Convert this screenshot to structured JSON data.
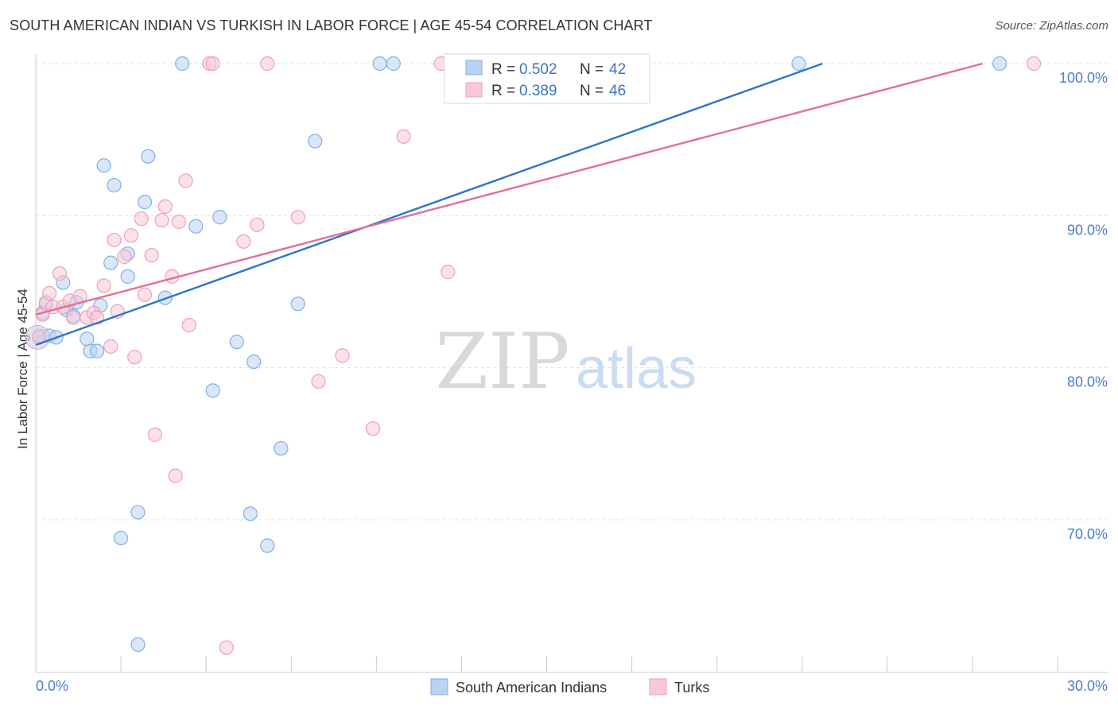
{
  "title": "SOUTH AMERICAN INDIAN VS TURKISH IN LABOR FORCE | AGE 45-54 CORRELATION CHART",
  "source": "Source: ZipAtlas.com",
  "watermark": {
    "zip": "ZIP",
    "atlas": "atlas"
  },
  "colors": {
    "blue": "#7fb0e8",
    "blue_fill": "#b9d4f3",
    "blue_line": "#2f73cc",
    "pink": "#f0a0b8",
    "pink_fill": "#f8c8d7",
    "pink_line": "#e26f97",
    "tick_text": "#4a7dc8",
    "grid": "#dde3ea"
  },
  "legend_box": {
    "rows": [
      {
        "r_label": "R =",
        "r_value": "0.502",
        "n_label": "N =",
        "n_value": "42"
      },
      {
        "r_label": "R =",
        "r_value": "0.389",
        "n_label": "N =",
        "n_value": "46"
      }
    ]
  },
  "chart_data": {
    "type": "scatter",
    "title": "SOUTH AMERICAN INDIAN VS TURKISH IN LABOR FORCE | AGE 45-54 CORRELATION CHART",
    "xlabel": "",
    "ylabel": "In Labor Force | Age 45-54",
    "xlim": [
      0,
      30
    ],
    "ylim": [
      60.5,
      101
    ],
    "x_tick_labels": [
      "0.0%",
      "30.0%"
    ],
    "y_ticks": [
      70,
      80,
      90,
      100
    ],
    "y_tick_labels": [
      "70.0%",
      "80.0%",
      "90.0%",
      "100.0%"
    ],
    "grid": true,
    "legend_position": "bottom",
    "series": [
      {
        "name": "South American Indians",
        "color": "#7fb0e8",
        "r": 0.502,
        "n": 42,
        "trend": {
          "x": [
            0.0,
            23.1
          ],
          "y": [
            81.5,
            100.0
          ]
        },
        "points": [
          [
            0.1,
            82.0
          ],
          [
            0.2,
            83.6
          ],
          [
            0.3,
            84.2
          ],
          [
            0.4,
            82.1
          ],
          [
            0.6,
            82.0
          ],
          [
            0.8,
            85.6
          ],
          [
            0.9,
            83.8
          ],
          [
            1.1,
            83.4
          ],
          [
            1.2,
            84.3
          ],
          [
            1.5,
            81.9
          ],
          [
            1.6,
            81.1
          ],
          [
            1.8,
            81.1
          ],
          [
            1.9,
            84.1
          ],
          [
            2.0,
            93.3
          ],
          [
            2.2,
            86.9
          ],
          [
            2.3,
            92.0
          ],
          [
            2.5,
            68.8
          ],
          [
            2.7,
            86.0
          ],
          [
            2.7,
            87.5
          ],
          [
            3.0,
            61.8
          ],
          [
            3.0,
            70.5
          ],
          [
            3.2,
            90.9
          ],
          [
            3.3,
            93.9
          ],
          [
            3.8,
            84.6
          ],
          [
            4.3,
            100.0
          ],
          [
            4.7,
            89.3
          ],
          [
            5.2,
            78.5
          ],
          [
            5.4,
            89.9
          ],
          [
            5.9,
            81.7
          ],
          [
            6.3,
            70.4
          ],
          [
            6.4,
            80.4
          ],
          [
            6.8,
            68.3
          ],
          [
            7.2,
            74.7
          ],
          [
            7.7,
            84.2
          ],
          [
            8.2,
            94.9
          ],
          [
            10.1,
            100.0
          ],
          [
            10.5,
            100.0
          ],
          [
            12.3,
            100.0
          ],
          [
            13.3,
            100.0
          ],
          [
            16.8,
            100.0
          ],
          [
            22.4,
            100.0
          ],
          [
            28.3,
            100.0
          ]
        ]
      },
      {
        "name": "Turks",
        "color": "#f0a0b8",
        "r": 0.389,
        "n": 46,
        "trend": {
          "x": [
            0.0,
            27.8
          ],
          "y": [
            83.5,
            100.0
          ]
        },
        "points": [
          [
            0.1,
            82.1
          ],
          [
            0.2,
            83.5
          ],
          [
            0.3,
            84.3
          ],
          [
            0.4,
            84.9
          ],
          [
            0.5,
            84.0
          ],
          [
            0.7,
            86.2
          ],
          [
            0.8,
            84.0
          ],
          [
            1.0,
            84.4
          ],
          [
            1.1,
            83.3
          ],
          [
            1.3,
            84.7
          ],
          [
            1.5,
            83.3
          ],
          [
            1.7,
            83.6
          ],
          [
            1.8,
            83.3
          ],
          [
            2.0,
            85.4
          ],
          [
            2.2,
            81.4
          ],
          [
            2.3,
            88.4
          ],
          [
            2.4,
            83.7
          ],
          [
            2.6,
            87.3
          ],
          [
            2.8,
            88.7
          ],
          [
            2.9,
            80.7
          ],
          [
            3.1,
            89.8
          ],
          [
            3.2,
            84.8
          ],
          [
            3.4,
            87.4
          ],
          [
            3.5,
            75.6
          ],
          [
            3.7,
            89.7
          ],
          [
            3.8,
            90.6
          ],
          [
            4.0,
            86.0
          ],
          [
            4.1,
            72.9
          ],
          [
            4.2,
            89.6
          ],
          [
            4.4,
            92.3
          ],
          [
            4.5,
            82.8
          ],
          [
            5.1,
            100.0
          ],
          [
            5.2,
            100.0
          ],
          [
            5.6,
            61.6
          ],
          [
            6.1,
            88.3
          ],
          [
            6.5,
            89.4
          ],
          [
            6.8,
            100.0
          ],
          [
            7.7,
            89.9
          ],
          [
            8.3,
            79.1
          ],
          [
            9.0,
            80.8
          ],
          [
            9.9,
            76.0
          ],
          [
            10.8,
            95.2
          ],
          [
            11.9,
            100.0
          ],
          [
            12.1,
            86.3
          ],
          [
            12.7,
            100.0
          ],
          [
            29.3,
            100.0
          ]
        ]
      }
    ]
  }
}
